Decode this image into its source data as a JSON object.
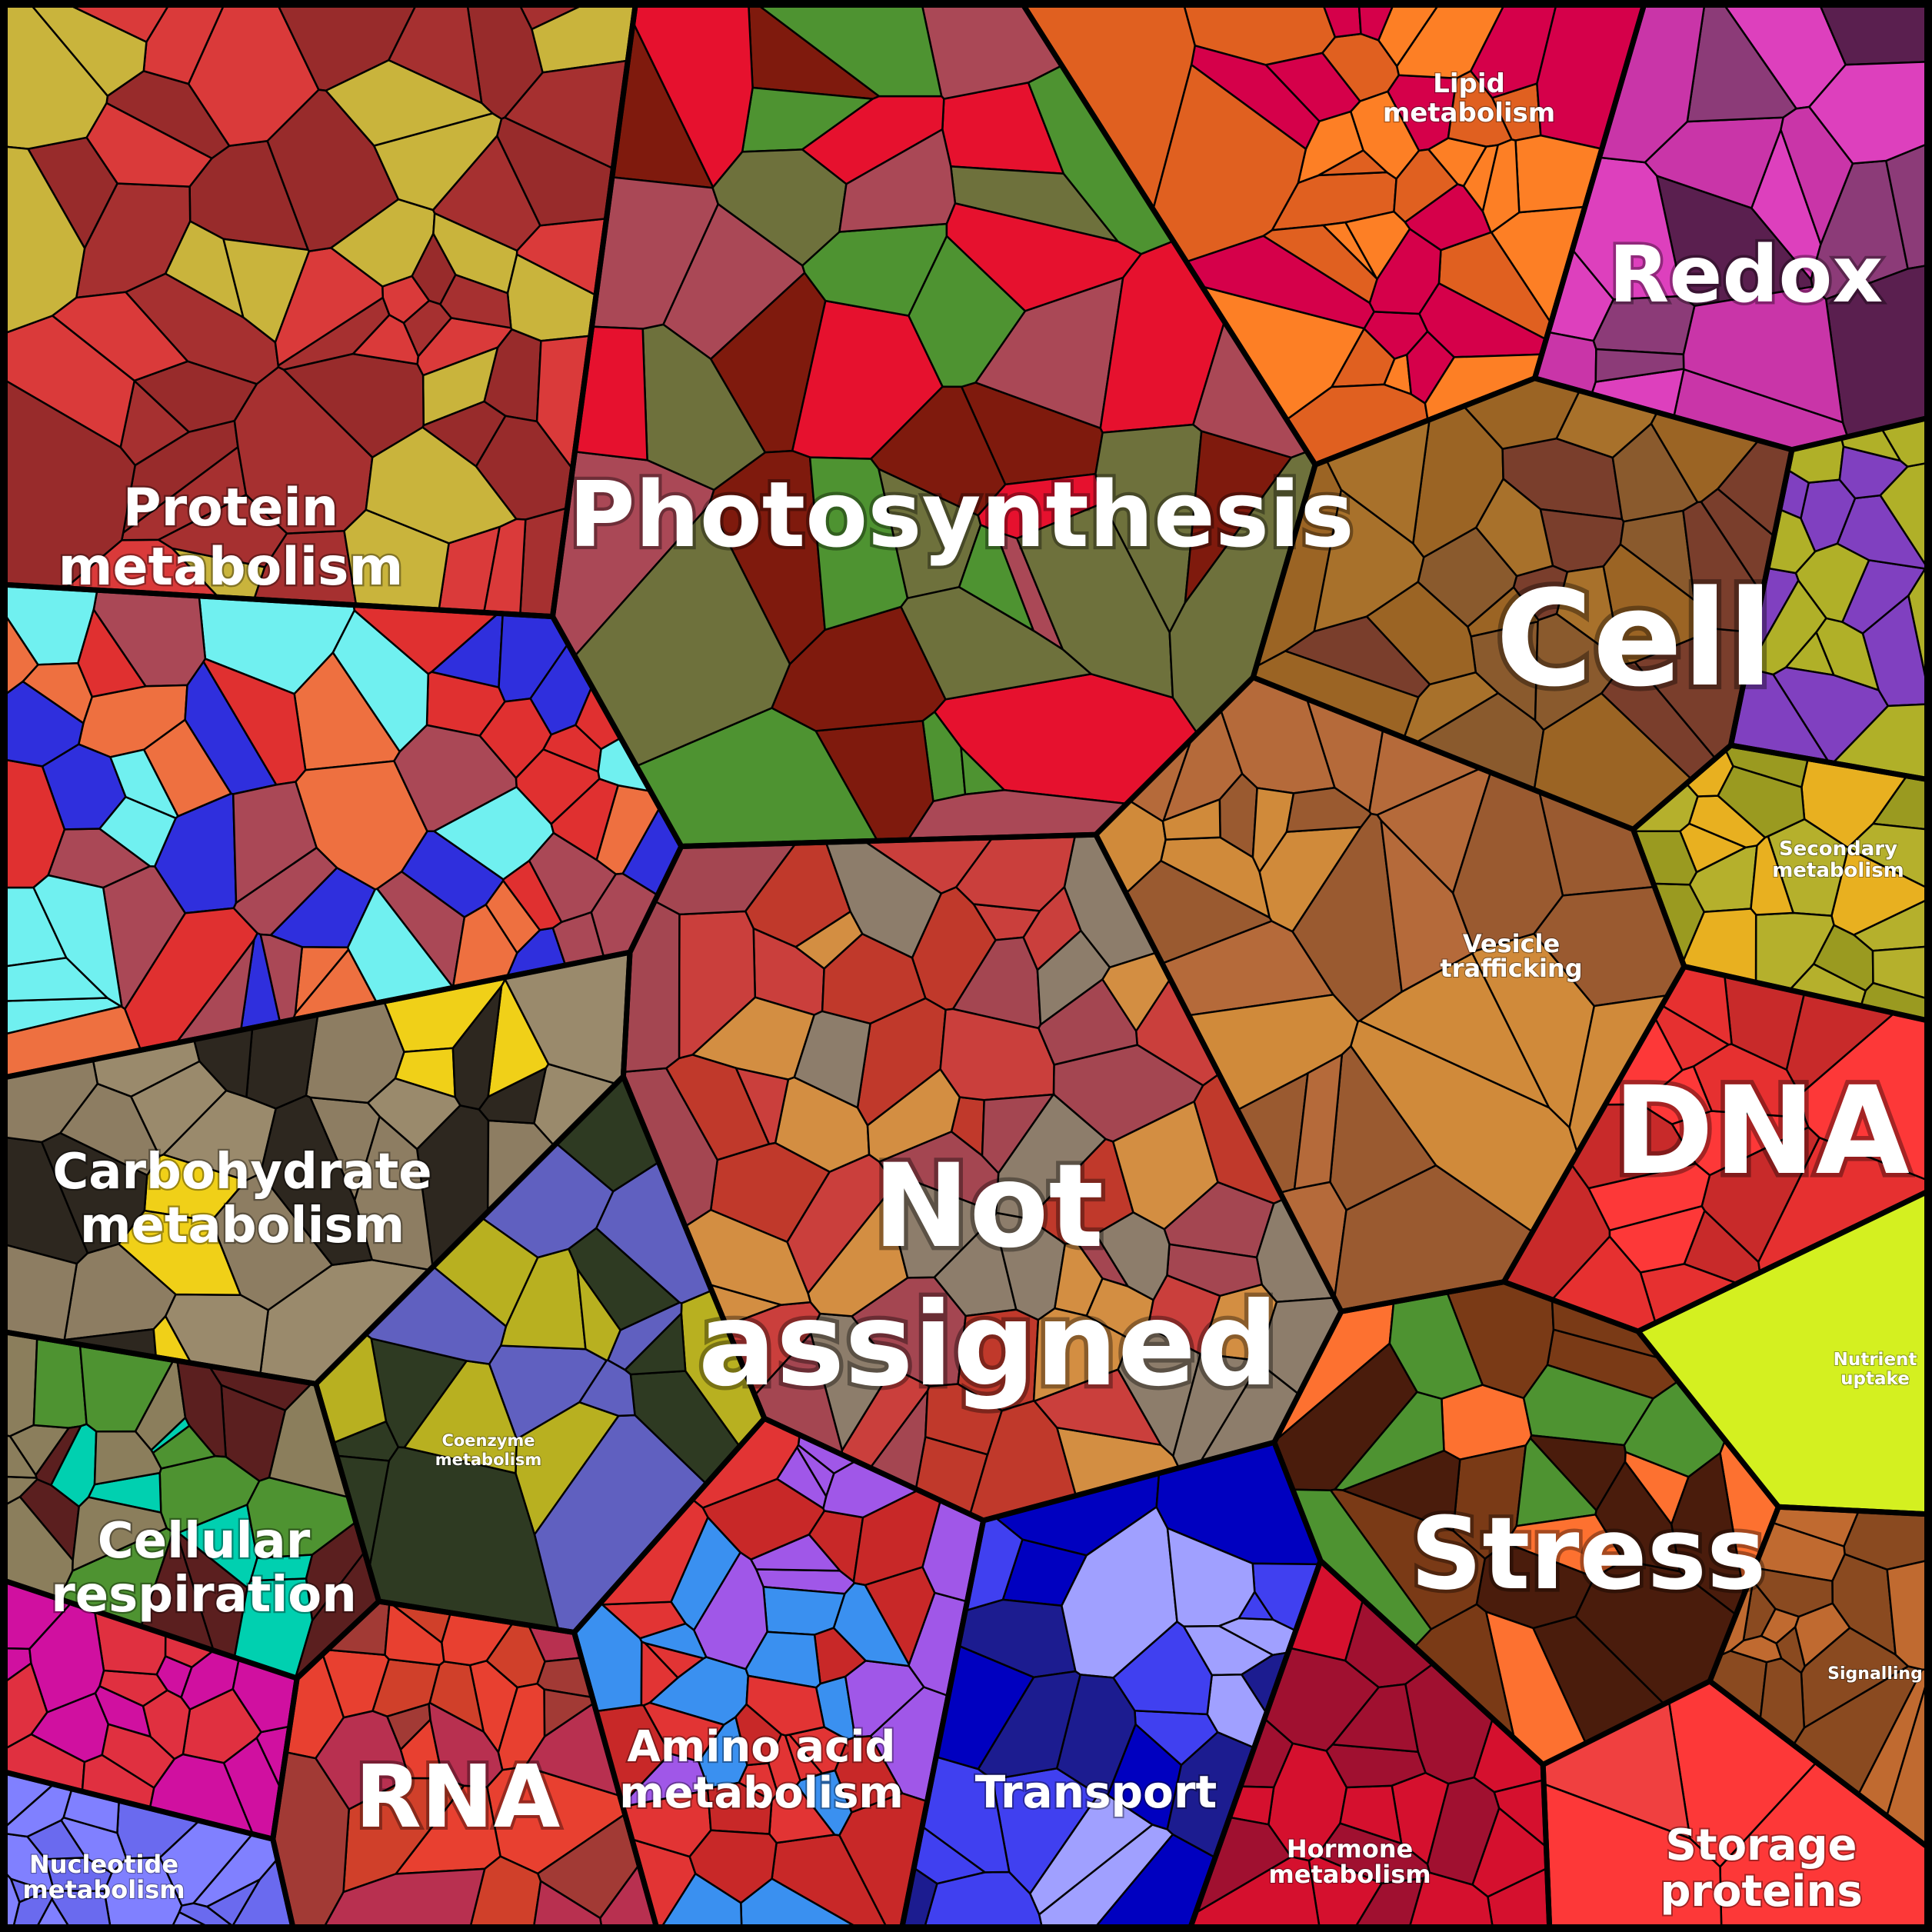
{
  "treemap": {
    "background": "#000000",
    "cell_border": "#000000",
    "label_color": "#ffffff",
    "categories": [
      {
        "id": "photosynthesis",
        "label": [
          "Photosynthesis"
        ],
        "colors": [
          "#4e9331",
          "#aa4856",
          "#6e713c",
          "#7f1a0d",
          "#e6112e"
        ]
      },
      {
        "id": "not-assigned",
        "label": [
          "Not",
          "assigned"
        ],
        "colors": [
          "#a44651",
          "#d38e42",
          "#ca3f3c",
          "#8d7d6b",
          "#c0392b"
        ]
      },
      {
        "id": "cell",
        "label": [
          "Cell"
        ],
        "colors": [
          "#9b6424",
          "#7a3e2c",
          "#8a5a2d",
          "#a8712b"
        ]
      },
      {
        "id": "dna",
        "label": [
          "DNA"
        ],
        "colors": [
          "#fd3838",
          "#e63030",
          "#c82a2a"
        ]
      },
      {
        "id": "stress",
        "label": [
          "Stress"
        ],
        "colors": [
          "#4a1c0c",
          "#fd7130",
          "#7a3a16",
          "#4e9331"
        ]
      },
      {
        "id": "redox",
        "label": [
          "Redox"
        ],
        "colors": [
          "#dd40bd",
          "#c935a8",
          "#8c3b78",
          "#5a1f4f"
        ]
      },
      {
        "id": "rna",
        "label": [
          "RNA"
        ],
        "colors": [
          "#e84030",
          "#b83050",
          "#d0402a",
          "#a23a35"
        ]
      },
      {
        "id": "protein-metabolism",
        "label": [
          "Protein",
          "metabolism"
        ],
        "colors": [
          "#982b2b",
          "#c9b43c",
          "#a63030",
          "#da3a3a"
        ]
      },
      {
        "id": "carbohydrate-metabolism",
        "label": [
          "Carbohydrate",
          "metabolism"
        ],
        "colors": [
          "#8d7d62",
          "#2d271f",
          "#9a8a6c",
          "#f0d018"
        ]
      },
      {
        "id": "cellular-respiration",
        "label": [
          "Cellular",
          "respiration"
        ],
        "colors": [
          "#8b7e5c",
          "#5b1f1f",
          "#4e9331",
          "#00d0b0"
        ]
      },
      {
        "id": "amino-acid-metabolism",
        "label": [
          "Amino acid",
          "metabolism"
        ],
        "colors": [
          "#e23434",
          "#a057e8",
          "#c82828",
          "#3a90f0"
        ]
      },
      {
        "id": "transport",
        "label": [
          "Transport"
        ],
        "colors": [
          "#4040f0",
          "#a0a0ff",
          "#0000c0",
          "#1c1c90"
        ]
      },
      {
        "id": "storage-proteins",
        "label": [
          "Storage",
          "proteins"
        ],
        "colors": [
          "#fd3838",
          "#f04040"
        ]
      },
      {
        "id": "lipid-metabolism",
        "label": [
          "Lipid",
          "metabolism"
        ],
        "colors": [
          "#fd7f25",
          "#d5004a",
          "#e06020"
        ]
      },
      {
        "id": "secondary-metabolism",
        "label": [
          "Secondary",
          "metabolism"
        ],
        "colors": [
          "#b5b02c",
          "#9a9a20",
          "#e8b020"
        ]
      },
      {
        "id": "vesicle-trafficking",
        "label": [
          "Vesicle",
          "trafficking"
        ],
        "colors": [
          "#b56a3a",
          "#d08a3a",
          "#9a5a30"
        ]
      },
      {
        "id": "nutrient-uptake",
        "label": [
          "Nutrient",
          "uptake"
        ],
        "colors": [
          "#d4f020"
        ]
      },
      {
        "id": "signalling",
        "label": [
          "Signalling"
        ],
        "colors": [
          "#8a4a20",
          "#c06a30"
        ]
      },
      {
        "id": "coenzyme-metabolism",
        "label": [
          "Coenzyme",
          "metabolism"
        ],
        "colors": [
          "#2e3a22",
          "#b8b020",
          "#6060c0"
        ]
      },
      {
        "id": "hormone-metabolism",
        "label": [
          "Hormone",
          "metabolism"
        ],
        "colors": [
          "#d5102e",
          "#a01030"
        ]
      },
      {
        "id": "nucleotide-metabolism",
        "label": [
          "Nucleotide",
          "metabolism"
        ],
        "colors": [
          "#8080ff",
          "#6a6aef"
        ]
      },
      {
        "id": "unlabelled-left",
        "label": [],
        "colors": [
          "#ee7040",
          "#e03030",
          "#70f0f0",
          "#2f2fdd",
          "#aa4856"
        ]
      },
      {
        "id": "unlabelled-bottom-left",
        "label": [],
        "colors": [
          "#d010a0",
          "#e03040"
        ]
      },
      {
        "id": "unlabelled-right",
        "label": [],
        "colors": [
          "#b0b028",
          "#8040c0"
        ]
      }
    ]
  }
}
